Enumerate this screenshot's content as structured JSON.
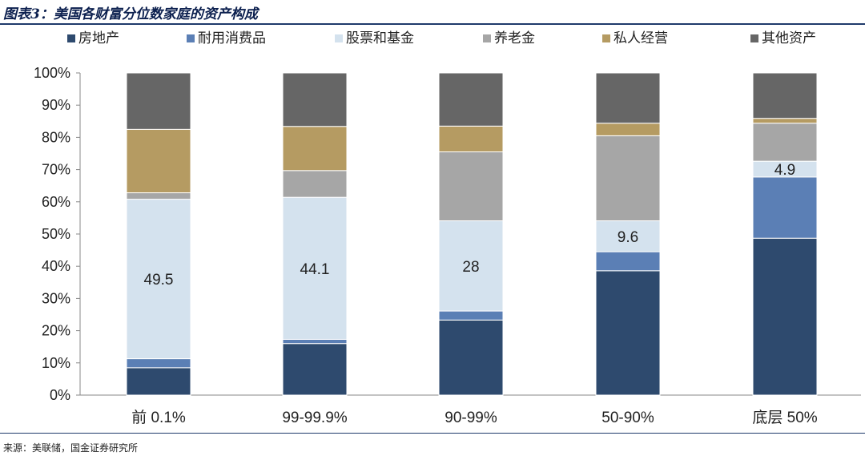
{
  "title": "图表3：美国各财富分位数家庭的资产构成",
  "source": "来源：美联储，国金证券研究所",
  "chart_data": {
    "type": "bar",
    "stacked": true,
    "categories": [
      "前 0.1%",
      "99-99.9%",
      "90-99%",
      "50-90%",
      "底层 50%"
    ],
    "series": [
      {
        "name": "房地产",
        "color": "#2e4a6e",
        "values": [
          8.5,
          16.0,
          23.3,
          38.6,
          48.7
        ]
      },
      {
        "name": "耐用消费品",
        "color": "#5b7fb5",
        "values": [
          2.8,
          1.3,
          2.8,
          5.9,
          19.0
        ]
      },
      {
        "name": "股票和基金",
        "color": "#d4e2ee",
        "values": [
          49.5,
          44.1,
          28.0,
          9.6,
          4.9
        ]
      },
      {
        "name": "养老金",
        "color": "#a6a6a6",
        "values": [
          2.0,
          8.3,
          21.4,
          26.4,
          11.8
        ]
      },
      {
        "name": "私人经营",
        "color": "#b59b62",
        "values": [
          19.7,
          13.7,
          8.0,
          3.9,
          1.5
        ]
      },
      {
        "name": "其他资产",
        "color": "#666666",
        "values": [
          17.5,
          16.6,
          16.5,
          15.6,
          14.1
        ]
      }
    ],
    "data_labels": [
      {
        "category": "前 0.1%",
        "series": "股票和基金",
        "text": "49.5"
      },
      {
        "category": "99-99.9%",
        "series": "股票和基金",
        "text": "44.1"
      },
      {
        "category": "90-99%",
        "series": "股票和基金",
        "text": "28"
      },
      {
        "category": "50-90%",
        "series": "股票和基金",
        "text": "9.6"
      },
      {
        "category": "底层 50%",
        "series": "股票和基金",
        "text": "4.9"
      }
    ],
    "ylim": [
      0,
      100
    ],
    "yticks": [
      "0%",
      "10%",
      "20%",
      "30%",
      "40%",
      "50%",
      "60%",
      "70%",
      "80%",
      "90%",
      "100%"
    ],
    "xlabel": "",
    "ylabel": "",
    "legend": "top",
    "grid": false
  }
}
